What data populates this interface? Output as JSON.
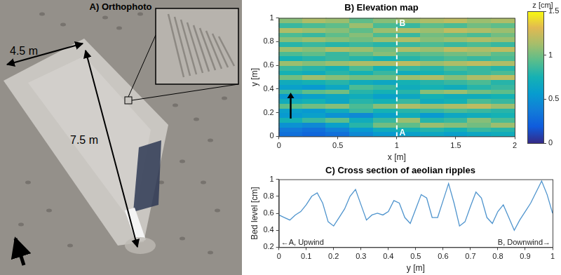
{
  "orthophoto": {
    "title": "A) Orthophoto",
    "labels": [
      "4.5 m",
      "7.5 m"
    ]
  },
  "chart_data": [
    {
      "type": "heatmap",
      "title": "B) Elevation map",
      "x_label": "x [m]",
      "y_label": "y [m]",
      "xlim": [
        0,
        2
      ],
      "ylim": [
        0,
        1
      ],
      "xticks": [
        0,
        0.5,
        1,
        1.5,
        2
      ],
      "yticks": [
        0,
        0.2,
        0.4,
        0.6,
        0.8,
        1
      ],
      "xbins": [
        0,
        0.2,
        0.4,
        0.6,
        0.8,
        1,
        1.2,
        1.4,
        1.6,
        1.8,
        2
      ],
      "ybins": [
        0,
        0.04,
        0.08,
        0.12,
        0.16,
        0.2,
        0.24,
        0.28,
        0.32,
        0.36,
        0.4,
        0.44,
        0.48,
        0.52,
        0.56,
        0.6,
        0.64,
        0.68,
        0.72,
        0.76,
        0.8,
        0.84,
        0.88,
        0.92,
        0.96,
        1
      ],
      "cells": [
        [
          0.3,
          0.25,
          0.3,
          0.45,
          0.55,
          0.6,
          0.65,
          0.6,
          0.65,
          0.7
        ],
        [
          0.35,
          0.3,
          0.4,
          0.55,
          0.7,
          0.75,
          0.8,
          0.75,
          0.85,
          0.8
        ],
        [
          0.5,
          0.45,
          0.6,
          0.8,
          1.0,
          0.95,
          1.1,
          1.05,
          1.0,
          1.1
        ],
        [
          0.75,
          0.85,
          0.95,
          0.7,
          0.85,
          1.1,
          0.8,
          0.85,
          1.05,
          0.9
        ],
        [
          0.55,
          0.6,
          0.5,
          0.45,
          0.6,
          0.7,
          0.55,
          0.65,
          0.7,
          0.75
        ],
        [
          0.6,
          0.55,
          0.7,
          0.85,
          0.75,
          0.8,
          0.85,
          0.9,
          0.85,
          0.8
        ],
        [
          0.95,
          1.0,
          1.05,
          0.9,
          1.05,
          1.15,
          1.1,
          1.15,
          1.2,
          1.1
        ],
        [
          0.7,
          0.75,
          0.65,
          0.8,
          0.75,
          0.85,
          0.7,
          0.75,
          0.9,
          0.85
        ],
        [
          0.55,
          0.6,
          0.65,
          0.7,
          0.6,
          0.65,
          0.75,
          0.7,
          0.7,
          0.75
        ],
        [
          0.85,
          0.95,
          1.0,
          0.8,
          0.75,
          0.8,
          1.05,
          1.1,
          1.0,
          0.95
        ],
        [
          0.6,
          0.55,
          0.65,
          0.9,
          0.85,
          0.7,
          0.75,
          0.7,
          0.8,
          0.85
        ],
        [
          0.7,
          0.75,
          0.8,
          0.7,
          0.65,
          0.75,
          0.8,
          0.85,
          0.9,
          0.8
        ],
        [
          1.0,
          1.1,
          1.05,
          1.0,
          1.0,
          1.1,
          1.15,
          1.05,
          1.15,
          1.2
        ],
        [
          0.75,
          0.7,
          0.8,
          0.75,
          0.85,
          0.7,
          0.75,
          0.8,
          0.85,
          0.9
        ],
        [
          0.85,
          0.8,
          0.75,
          0.9,
          0.75,
          0.85,
          0.8,
          0.9,
          0.85,
          0.8
        ],
        [
          1.1,
          1.05,
          1.1,
          1.15,
          1.15,
          1.2,
          1.1,
          1.15,
          1.2,
          1.15
        ],
        [
          0.75,
          0.8,
          0.85,
          0.8,
          0.75,
          0.8,
          0.85,
          0.9,
          0.85,
          0.9
        ],
        [
          0.9,
          0.95,
          0.85,
          0.95,
          1.05,
          0.9,
          0.95,
          1.0,
          1.05,
          0.95
        ],
        [
          1.1,
          1.05,
          1.15,
          1.1,
          1.0,
          1.15,
          1.1,
          1.2,
          1.15,
          1.2
        ],
        [
          0.8,
          0.85,
          0.8,
          0.85,
          0.8,
          0.85,
          0.9,
          0.85,
          0.9,
          0.85
        ],
        [
          1.05,
          1.1,
          1.05,
          1.0,
          1.1,
          1.15,
          1.05,
          1.1,
          1.15,
          1.1
        ],
        [
          0.9,
          0.85,
          0.95,
          1.05,
          0.9,
          0.85,
          1.0,
          0.95,
          0.9,
          1.0
        ],
        [
          1.15,
          1.1,
          1.05,
          0.95,
          1.1,
          1.15,
          1.1,
          1.2,
          1.15,
          1.1
        ],
        [
          0.85,
          0.9,
          0.95,
          1.1,
          0.9,
          0.85,
          0.95,
          0.9,
          1.0,
          0.95
        ],
        [
          1.05,
          1.15,
          1.1,
          0.95,
          1.05,
          1.1,
          1.15,
          1.2,
          1.1,
          1.15
        ]
      ],
      "colorbar": {
        "label": "z [cm]",
        "range": [
          0,
          1.5
        ],
        "ticks": [
          0,
          0.5,
          1,
          1.5
        ]
      },
      "section_x": 1,
      "annotations": [
        {
          "text": "A",
          "x": 1,
          "y": 0.03
        },
        {
          "text": "B",
          "x": 1,
          "y": 0.95
        }
      ]
    },
    {
      "type": "line",
      "title": "C) Cross section of aeolian ripples",
      "x_label": "y [m]",
      "y_label": "Bed level [cm]",
      "xlim": [
        0,
        1
      ],
      "ylim": [
        0.2,
        1
      ],
      "xticks": [
        0,
        0.1,
        0.2,
        0.3,
        0.4,
        0.5,
        0.6,
        0.7,
        0.8,
        0.9,
        1
      ],
      "yticks": [
        0.2,
        0.4,
        0.6,
        0.8,
        1
      ],
      "x": [
        0,
        0.02,
        0.04,
        0.06,
        0.08,
        0.1,
        0.12,
        0.14,
        0.16,
        0.18,
        0.2,
        0.22,
        0.24,
        0.26,
        0.28,
        0.3,
        0.32,
        0.34,
        0.36,
        0.38,
        0.4,
        0.42,
        0.44,
        0.46,
        0.48,
        0.5,
        0.52,
        0.54,
        0.56,
        0.58,
        0.6,
        0.62,
        0.64,
        0.66,
        0.68,
        0.7,
        0.72,
        0.74,
        0.76,
        0.78,
        0.8,
        0.82,
        0.84,
        0.86,
        0.88,
        0.9,
        0.92,
        0.94,
        0.96,
        0.98,
        1
      ],
      "values": [
        0.58,
        0.55,
        0.52,
        0.58,
        0.62,
        0.7,
        0.8,
        0.84,
        0.72,
        0.5,
        0.45,
        0.55,
        0.65,
        0.8,
        0.88,
        0.7,
        0.52,
        0.58,
        0.6,
        0.58,
        0.62,
        0.75,
        0.72,
        0.55,
        0.48,
        0.65,
        0.82,
        0.78,
        0.55,
        0.55,
        0.75,
        0.95,
        0.72,
        0.45,
        0.5,
        0.68,
        0.85,
        0.78,
        0.55,
        0.48,
        0.62,
        0.7,
        0.55,
        0.4,
        0.52,
        0.62,
        0.72,
        0.85,
        0.98,
        0.82,
        0.6
      ],
      "color": "#4f94cd",
      "annotations": [
        {
          "text": "←A, Upwind",
          "x": 0,
          "y": 0.25
        },
        {
          "text": "B, Downwind→",
          "x": 1,
          "y": 0.25
        }
      ]
    }
  ]
}
